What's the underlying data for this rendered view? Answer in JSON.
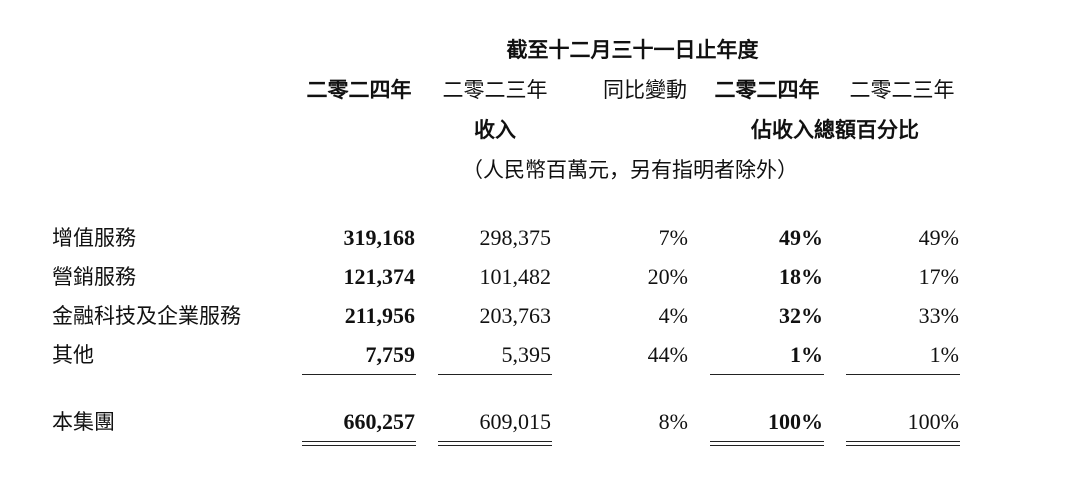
{
  "header": {
    "period": "截至十二月三十一日止年度",
    "col_2024": "二零二四年",
    "col_2023": "二零二三年",
    "col_yoy": "同比變動",
    "col_pct_2024": "二零二四年",
    "col_pct_2023": "二零二三年",
    "revenue": "收入",
    "pct_of_total": "佔收入總額百分比",
    "unit": "（人民幣百萬元，另有指明者除外）"
  },
  "rows": [
    {
      "label": "增值服務",
      "v2024": "319,168",
      "v2023": "298,375",
      "yoy": "7%",
      "p2024": "49%",
      "p2023": "49%"
    },
    {
      "label": "營銷服務",
      "v2024": "121,374",
      "v2023": "101,482",
      "yoy": "20%",
      "p2024": "18%",
      "p2023": "17%"
    },
    {
      "label": "金融科技及企業服務",
      "v2024": "211,956",
      "v2023": "203,763",
      "yoy": "4%",
      "p2024": "32%",
      "p2023": "33%"
    },
    {
      "label": "其他",
      "v2024": "7,759",
      "v2023": "5,395",
      "yoy": "44%",
      "p2024": "1%",
      "p2023": "1%"
    }
  ],
  "total": {
    "label": "本集團",
    "v2024": "660,257",
    "v2023": "609,015",
    "yoy": "8%",
    "p2024": "100%",
    "p2023": "100%"
  }
}
